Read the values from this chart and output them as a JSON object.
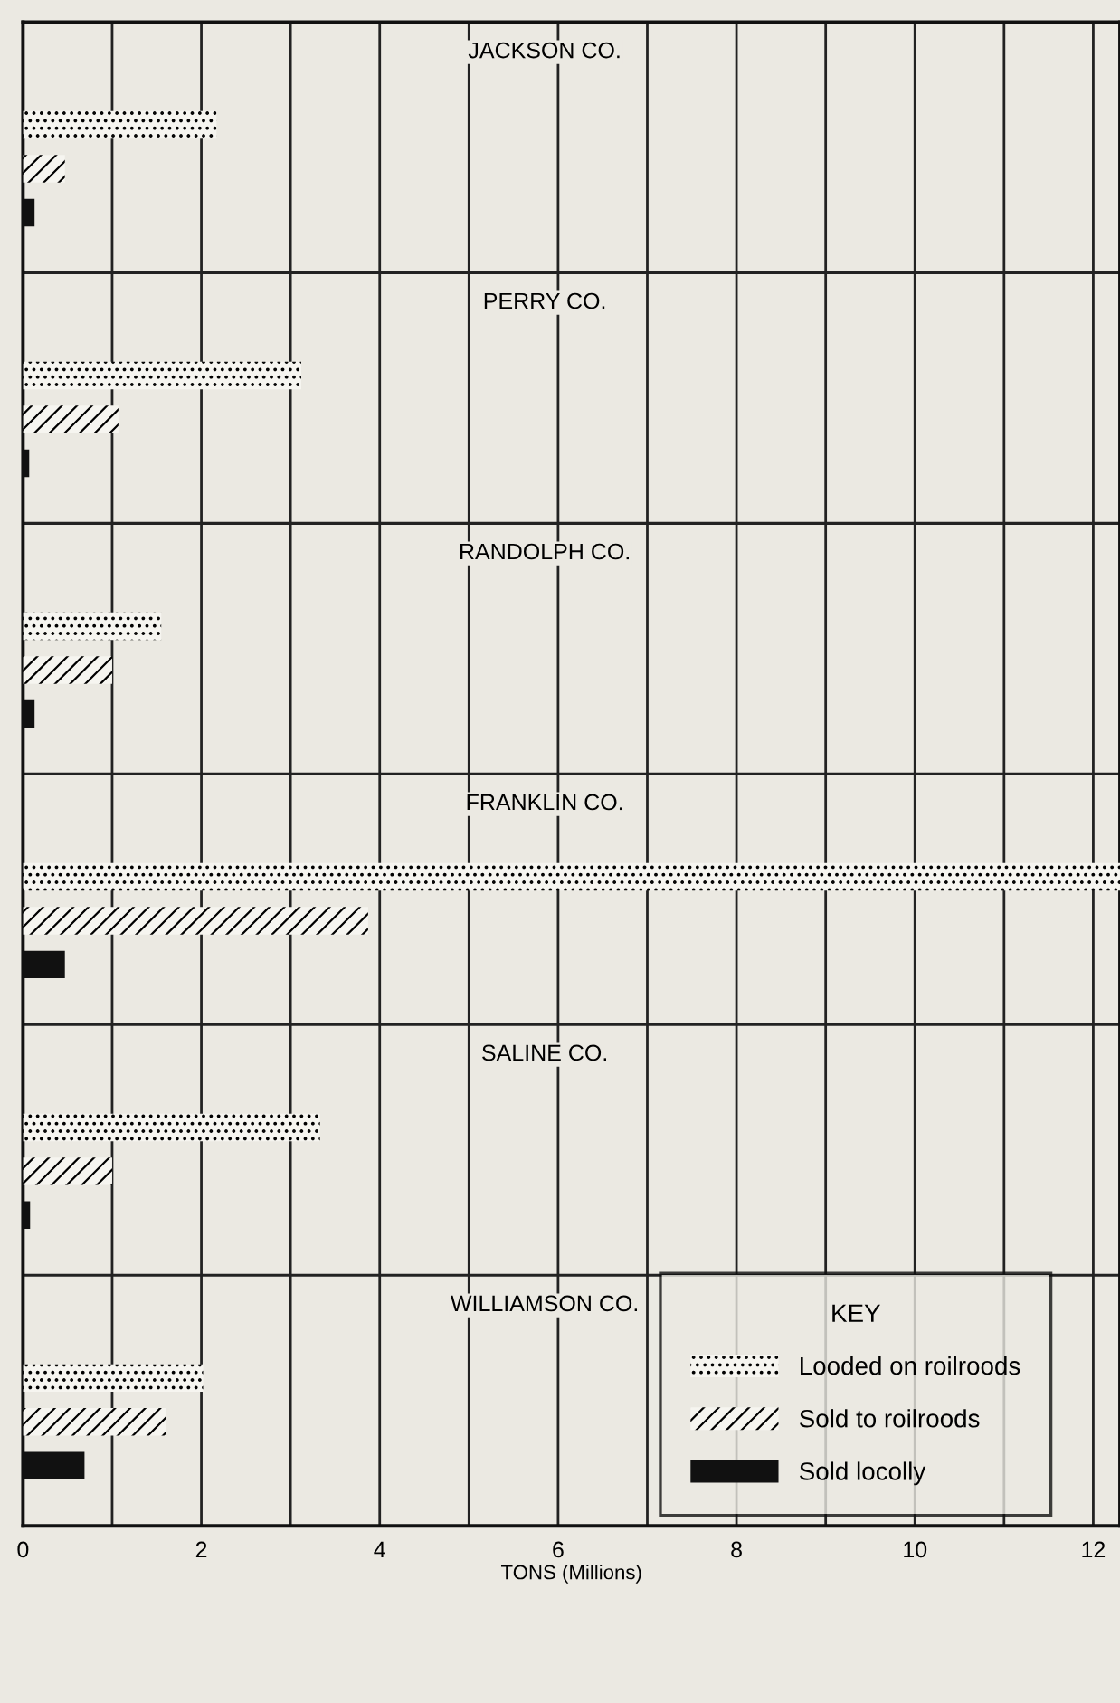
{
  "chart_data": {
    "type": "bar",
    "orientation": "horizontal",
    "categories": [
      "JACKSON CO.",
      "PERRY CO.",
      "RANDOLPH CO.",
      "FRANKLIN CO.",
      "SALINE CO.",
      "WILLIAMSON CO."
    ],
    "series": [
      {
        "name": "Looded on roilroods",
        "color": "#f6f5f0",
        "values": [
          2.17,
          3.12,
          1.55,
          12.3,
          3.33,
          2.02
        ]
      },
      {
        "name": "Sold to roilroods",
        "color": "#f6f5f0",
        "values": [
          0.47,
          1.07,
          1.0,
          3.87,
          1.0,
          1.6
        ]
      },
      {
        "name": "Sold locolly",
        "color": "#111111",
        "values": [
          0.13,
          0.07,
          0.13,
          0.47,
          0.08,
          0.69
        ]
      }
    ],
    "xlim": [
      0,
      12.3
    ],
    "xticks": [
      0,
      {
        "value": 1,
        "label": null
      },
      2,
      {
        "value": 3,
        "label": null
      },
      4,
      {
        "value": 5,
        "label": null
      },
      6,
      {
        "value": 7,
        "label": null
      },
      8,
      {
        "value": 9,
        "label": null
      },
      10,
      {
        "value": 11,
        "label": null
      },
      12
    ],
    "xlabel": "TONS (Millions)",
    "grid": "x",
    "legend": "bottom right",
    "legend_title": "KEY"
  }
}
